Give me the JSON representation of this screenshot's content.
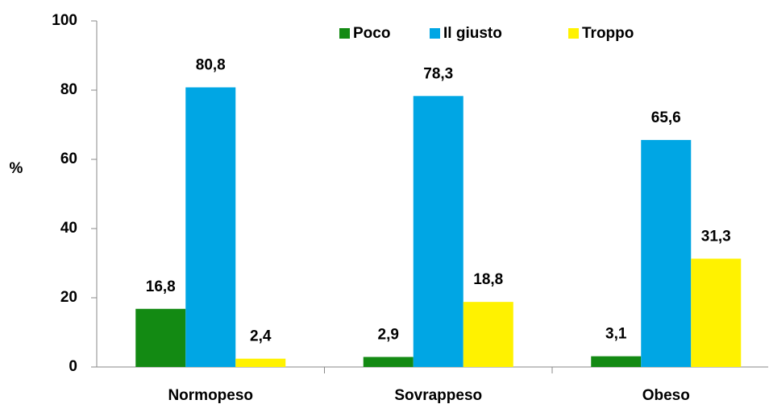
{
  "chart_data": {
    "type": "bar",
    "y_label": "%",
    "categories": [
      "Normopeso",
      "Sovrappeso",
      "Obeso"
    ],
    "series": [
      {
        "name": "Poco",
        "color": "#138a13",
        "values": [
          16.8,
          2.9,
          3.1
        ],
        "value_labels": [
          "16,8",
          "2,9",
          "3,1"
        ]
      },
      {
        "name": "Il giusto",
        "color": "#00a6e4",
        "values": [
          80.8,
          78.3,
          65.6
        ],
        "value_labels": [
          "80,8",
          "78,3",
          "65,6"
        ]
      },
      {
        "name": "Troppo",
        "color": "#fff200",
        "values": [
          2.4,
          18.8,
          31.3
        ],
        "value_labels": [
          "2,4",
          "18,8",
          "31,3"
        ]
      }
    ],
    "ylim": [
      0,
      100
    ],
    "yticks": [
      0,
      20,
      40,
      60,
      80,
      100
    ],
    "grid": false,
    "legend": "top"
  }
}
